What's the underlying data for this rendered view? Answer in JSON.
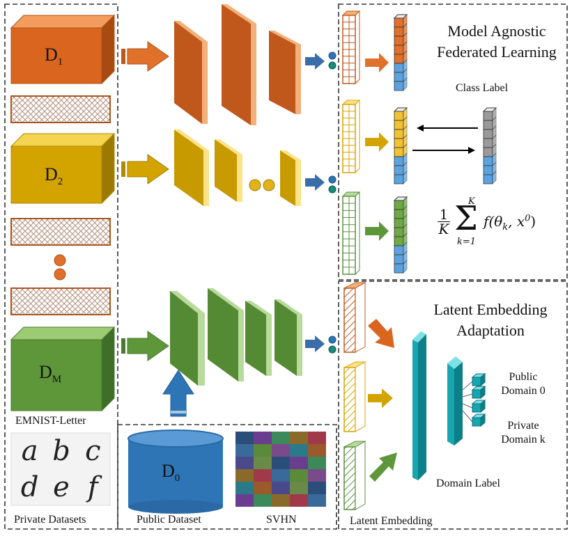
{
  "datasets": {
    "d1": "D",
    "d1_sub": "1",
    "d2": "D",
    "d2_sub": "2",
    "dm": "D",
    "dm_sub": "M",
    "d0": "D",
    "d0_sub": "0"
  },
  "labels": {
    "emnist": "EMNIST-Letter",
    "private_datasets": "Private Datasets",
    "public_dataset": "Public Dataset",
    "svhn": "SVHN",
    "latent_embedding": "Latent Embedding",
    "class_label": "Class Label",
    "domain_label": "Domain Label",
    "public_domain_line1": "Public",
    "public_domain_line2": "Domain 0",
    "private_domain_line1": "Private",
    "private_domain_line2": "Domain k"
  },
  "panels": {
    "fl_title_line1": "Model Agnostic",
    "fl_title_line2": "Federated Learning",
    "lea_title_line1": "Latent Embedding",
    "lea_title_line2": "Adaptation"
  },
  "formula": {
    "num": "1",
    "den": "K",
    "upper": "K",
    "lower": "k=1",
    "body": "f(θ",
    "body_sub": "k",
    "body_rest": ", x",
    "body_sup": "0",
    "close": ")"
  },
  "emnist_glyphs": [
    "a",
    "b",
    "c",
    "d",
    "e",
    "f"
  ],
  "colors": {
    "orange": "#E0702A",
    "yellow": "#E3B21A",
    "green": "#6FA845",
    "blue": "#2E75B6",
    "teal": "#1BB3BF",
    "gray": "#808080"
  }
}
